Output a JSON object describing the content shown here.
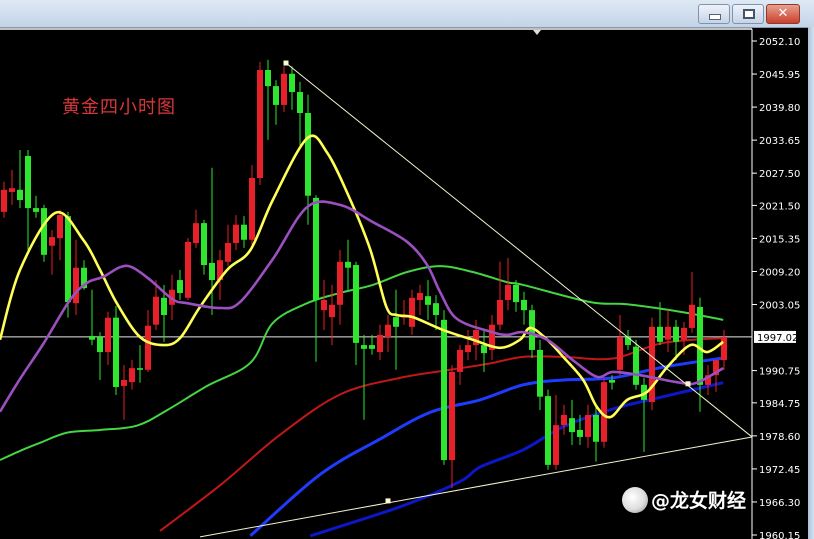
{
  "window": {
    "buttons": [
      {
        "name": "minimize",
        "icon": "minimize-icon"
      },
      {
        "name": "restore",
        "icon": "restore-icon"
      },
      {
        "name": "close",
        "icon": "close-icon"
      }
    ]
  },
  "watermark": {
    "text": "@龙女财经",
    "icon": "wechat-logo-icon"
  },
  "colors": {
    "background": "#000000",
    "up_candle": "#e8202a",
    "down_candle": "#2ee62e",
    "ma_yellow": "#ffff55",
    "ma_purple": "#9b4fc0",
    "ma_green": "#44d444",
    "ma_red": "#c01818",
    "ma_blue": "#1e3cff",
    "ma_darkblue": "#0c18c8",
    "trendline": "#f4f4d0",
    "title": "#d8363c"
  },
  "chart_data": {
    "type": "candlestick",
    "title": "黄金四小时图",
    "ylim": [
      1960.15,
      2052.1
    ],
    "yticks": [
      "2052.10",
      "2045.95",
      "2039.80",
      "2033.65",
      "2027.50",
      "2021.50",
      "2015.35",
      "2009.20",
      "2003.05",
      "1990.75",
      "1984.75",
      "1978.60",
      "1972.45",
      "1966.30",
      "1960.15"
    ],
    "current_price": "1997.02",
    "grid": false,
    "candles_ohlc": [
      [
        2020.3,
        2025.9,
        2019.2,
        2024.4
      ],
      [
        2024.0,
        2028.1,
        2021.6,
        2024.7
      ],
      [
        2024.4,
        2031.8,
        2021.0,
        2022.5
      ],
      [
        2030.7,
        2031.8,
        2013.2,
        2021.0
      ],
      [
        2021.0,
        2023.3,
        2019.2,
        2020.3
      ],
      [
        2021.0,
        2021.6,
        2011.0,
        2012.3
      ],
      [
        2014.0,
        2016.9,
        2008.6,
        2015.6
      ],
      [
        2015.4,
        2020.7,
        2011.3,
        2019.7
      ],
      [
        2019.5,
        2020.3,
        2000.6,
        2003.5
      ],
      [
        2003.3,
        2015.1,
        2001.1,
        2009.9
      ],
      [
        2009.9,
        2011.3,
        2005.8,
        2006.1
      ],
      [
        1997.2,
        2005.8,
        1995.5,
        1996.5
      ],
      [
        1997.0,
        1997.9,
        1989.0,
        1994.2
      ],
      [
        1994.2,
        2001.7,
        1991.8,
        2000.6
      ],
      [
        2000.6,
        2002.8,
        1986.2,
        1987.7
      ],
      [
        1987.9,
        1991.8,
        1981.6,
        1989.0
      ],
      [
        1988.6,
        1992.7,
        1987.2,
        1991.2
      ],
      [
        1991.2,
        1995.5,
        1988.5,
        1990.9
      ],
      [
        1990.9,
        2002.0,
        1990.5,
        1999.1
      ],
      [
        1999.3,
        2007.6,
        1998.3,
        2004.5
      ],
      [
        2004.3,
        2006.7,
        1996.1,
        2001.1
      ],
      [
        2003.0,
        2008.6,
        2000.2,
        2005.8
      ],
      [
        2007.6,
        2009.5,
        2003.9,
        2005.2
      ],
      [
        2004.3,
        2015.4,
        2003.9,
        2014.7
      ],
      [
        2014.5,
        2020.7,
        2013.6,
        2018.2
      ],
      [
        2018.2,
        2018.8,
        2008.6,
        2010.4
      ],
      [
        2010.8,
        2028.5,
        2001.1,
        2007.6
      ],
      [
        2007.6,
        2013.2,
        2003.9,
        2011.3
      ],
      [
        2011.0,
        2017.9,
        2010.2,
        2014.5
      ],
      [
        2014.5,
        2019.7,
        2013.2,
        2017.9
      ],
      [
        2017.9,
        2019.5,
        2013.6,
        2015.1
      ],
      [
        2015.1,
        2029.0,
        2014.1,
        2026.6
      ],
      [
        2026.6,
        2048.2,
        2025.3,
        2046.7
      ],
      [
        2046.7,
        2048.6,
        2033.7,
        2043.7
      ],
      [
        2043.7,
        2044.8,
        2036.5,
        2040.2
      ],
      [
        2040.2,
        2047.4,
        2038.9,
        2046.0
      ],
      [
        2046.0,
        2047.4,
        2039.3,
        2042.6
      ],
      [
        2042.6,
        2044.5,
        2032.7,
        2038.7
      ],
      [
        2038.7,
        2042.1,
        2017.9,
        2023.3
      ],
      [
        2022.9,
        2023.4,
        1992.4,
        2003.9
      ],
      [
        2002.0,
        2007.6,
        1998.3,
        2003.9
      ],
      [
        2000.7,
        2006.7,
        1995.5,
        2003.0
      ],
      [
        2003.0,
        2013.2,
        1999.3,
        2011.0
      ],
      [
        2011.0,
        2015.1,
        2005.8,
        2009.9
      ],
      [
        2010.4,
        2011.0,
        1991.8,
        1995.9
      ],
      [
        1995.5,
        1997.4,
        1981.6,
        1994.8
      ],
      [
        1995.5,
        1997.4,
        1993.7,
        1994.8
      ],
      [
        1994.2,
        1999.3,
        1992.7,
        1997.4
      ],
      [
        1997.0,
        2001.1,
        1994.2,
        1999.3
      ],
      [
        2000.7,
        2005.8,
        1990.9,
        1998.9
      ],
      [
        2000.6,
        2003.9,
        1999.3,
        2001.1
      ],
      [
        1998.9,
        2005.8,
        1997.4,
        2004.3
      ],
      [
        2003.9,
        2006.7,
        2001.1,
        2005.2
      ],
      [
        2004.6,
        2007.6,
        2000.2,
        2003.0
      ],
      [
        2003.3,
        2004.8,
        1998.3,
        2001.1
      ],
      [
        2000.2,
        2002.0,
        1973.2,
        1974.1
      ],
      [
        1974.1,
        1991.8,
        1968.9,
        1990.5
      ],
      [
        1990.5,
        1995.5,
        1988.1,
        1994.6
      ],
      [
        1994.2,
        1998.3,
        1992.7,
        1995.5
      ],
      [
        1995.5,
        2000.2,
        1992.7,
        1998.3
      ],
      [
        1995.5,
        1998.3,
        1990.5,
        1994.0
      ],
      [
        1994.6,
        2001.1,
        1992.7,
        1999.3
      ],
      [
        1999.3,
        2011.0,
        1998.3,
        2003.9
      ],
      [
        2003.9,
        2011.7,
        2002.0,
        2006.7
      ],
      [
        2006.7,
        2007.6,
        2001.7,
        2003.5
      ],
      [
        2003.9,
        2005.4,
        1999.3,
        2002.0
      ],
      [
        2002.0,
        2003.0,
        1993.1,
        1994.6
      ],
      [
        1994.6,
        1996.5,
        1983.4,
        1985.9
      ],
      [
        1986.0,
        1987.2,
        1972.3,
        1973.2
      ],
      [
        1973.2,
        1986.2,
        1972.3,
        1980.6
      ],
      [
        1980.6,
        1984.4,
        1978.8,
        1982.5
      ],
      [
        1981.9,
        1985.3,
        1976.9,
        1979.3
      ],
      [
        1979.7,
        1982.5,
        1976.9,
        1978.4
      ],
      [
        1978.4,
        1984.4,
        1976.4,
        1982.5
      ],
      [
        1982.5,
        1984.4,
        1973.8,
        1977.5
      ],
      [
        1977.5,
        1989.4,
        1976.4,
        1988.6
      ],
      [
        1989.0,
        1989.9,
        1987.2,
        1988.5
      ],
      [
        1990.9,
        2001.1,
        1989.9,
        1997.0
      ],
      [
        1997.0,
        1998.3,
        1994.6,
        1995.5
      ],
      [
        1995.2,
        1996.5,
        1987.2,
        1988.1
      ],
      [
        1988.1,
        1989.4,
        1975.6,
        1985.3
      ],
      [
        1984.9,
        2000.6,
        1983.4,
        1998.9
      ],
      [
        1998.9,
        2003.5,
        1995.5,
        1996.1
      ],
      [
        1996.5,
        2002.0,
        1994.2,
        1998.9
      ],
      [
        1998.9,
        2000.2,
        1992.7,
        1996.1
      ],
      [
        1996.5,
        1999.8,
        1993.7,
        1998.7
      ],
      [
        1998.7,
        2009.1,
        1997.8,
        2003.0
      ],
      [
        2002.6,
        2004.3,
        1983.1,
        1988.1
      ],
      [
        1988.1,
        1991.8,
        1986.2,
        1989.9
      ],
      [
        1989.9,
        1992.7,
        1986.8,
        1992.7
      ],
      [
        1992.7,
        1998.3,
        1990.9,
        1997.0
      ]
    ],
    "moving_averages": [
      {
        "color_key": "ma_yellow",
        "points": [
          [
            -0.5,
            1996.5
          ],
          [
            2,
            2009.5
          ],
          [
            6.4,
            2020.1
          ],
          [
            9.9,
            2015.1
          ],
          [
            12,
            2009.5
          ],
          [
            14.1,
            2003.3
          ],
          [
            17,
            1997.0
          ],
          [
            19.9,
            1995.5
          ],
          [
            22,
            1996.8
          ],
          [
            24.5,
            2002.6
          ],
          [
            27.9,
            2009.5
          ],
          [
            30.8,
            2013.2
          ],
          [
            33.6,
            2022.5
          ],
          [
            37.9,
            2034.0
          ],
          [
            40.4,
            2031.3
          ],
          [
            43.3,
            2022.5
          ],
          [
            45.8,
            2013.2
          ],
          [
            47.8,
            2002.6
          ],
          [
            49.1,
            2001.1
          ],
          [
            51.1,
            2000.7
          ],
          [
            54.9,
            1998.3
          ],
          [
            58.6,
            1996.5
          ],
          [
            62,
            1995.0
          ],
          [
            64.5,
            1996.5
          ],
          [
            65.8,
            1998.7
          ],
          [
            67.9,
            1996.5
          ],
          [
            69.9,
            1993.3
          ],
          [
            72.4,
            1989.0
          ],
          [
            74.1,
            1984.0
          ],
          [
            75.8,
            1982.1
          ],
          [
            77.9,
            1985.3
          ],
          [
            80.4,
            1986.8
          ],
          [
            82.9,
            1991.4
          ],
          [
            85.8,
            1995.5
          ],
          [
            87.9,
            1994.2
          ],
          [
            89.9,
            1996.1
          ]
        ]
      },
      {
        "color_key": "ma_purple",
        "points": [
          [
            -0.5,
            1983.1
          ],
          [
            2,
            1989.2
          ],
          [
            4.9,
            1995.7
          ],
          [
            8.3,
            2004.0
          ],
          [
            10.4,
            2007.1
          ],
          [
            12.4,
            2008.2
          ],
          [
            14.5,
            2010.0
          ],
          [
            16,
            2010.0
          ],
          [
            18.3,
            2007.6
          ],
          [
            21.1,
            2004.0
          ],
          [
            22.9,
            2003.3
          ],
          [
            27,
            2002.4
          ],
          [
            29.5,
            2003.5
          ],
          [
            33.6,
            2011.5
          ],
          [
            37.9,
            2021.2
          ],
          [
            42,
            2021.6
          ],
          [
            46.1,
            2018.4
          ],
          [
            50.4,
            2014.7
          ],
          [
            52.9,
            2010.4
          ],
          [
            54.5,
            2005.4
          ],
          [
            56.6,
            2000.4
          ],
          [
            60.8,
            1998.0
          ],
          [
            62.9,
            1997.4
          ],
          [
            64.9,
            1997.9
          ],
          [
            67.9,
            1996.5
          ],
          [
            71.1,
            1992.7
          ],
          [
            74.1,
            1989.6
          ],
          [
            76.1,
            1990.5
          ],
          [
            79.5,
            1989.9
          ],
          [
            84.5,
            1988.5
          ],
          [
            86.6,
            1988.5
          ],
          [
            89.9,
            1991.2
          ]
        ]
      },
      {
        "color_key": "ma_green",
        "points": [
          [
            -0.5,
            1974.1
          ],
          [
            2,
            1975.8
          ],
          [
            4.5,
            1977.3
          ],
          [
            7.9,
            1979.2
          ],
          [
            12,
            1979.7
          ],
          [
            16.6,
            1980.5
          ],
          [
            20.4,
            1983.4
          ],
          [
            25.4,
            1987.9
          ],
          [
            30.8,
            1992.2
          ],
          [
            33.6,
            1999.6
          ],
          [
            37.9,
            2003.3
          ],
          [
            42,
            2005.2
          ],
          [
            46.1,
            2006.7
          ],
          [
            50.4,
            2009.1
          ],
          [
            54.5,
            2010.2
          ],
          [
            58.6,
            2009.1
          ],
          [
            62.9,
            2007.2
          ],
          [
            64.9,
            2006.7
          ],
          [
            73.3,
            2003.5
          ],
          [
            77.9,
            2003.1
          ],
          [
            84.5,
            2001.7
          ],
          [
            89.9,
            2000.2
          ]
        ]
      },
      {
        "color_key": "ma_red",
        "points": [
          [
            19.5,
            1960.9
          ],
          [
            27,
            1969.4
          ],
          [
            34.5,
            1978.8
          ],
          [
            42,
            1986.3
          ],
          [
            49.5,
            1989.4
          ],
          [
            55.8,
            1990.9
          ],
          [
            60.8,
            1992.1
          ],
          [
            64.9,
            1993.3
          ],
          [
            69.9,
            1993.3
          ],
          [
            76.1,
            1993.0
          ],
          [
            82.4,
            1995.9
          ],
          [
            89.9,
            1996.8
          ]
        ]
      },
      {
        "color_key": "ma_blue",
        "points": [
          [
            30.8,
            1960.0
          ],
          [
            39.5,
            1971.4
          ],
          [
            47,
            1978.0
          ],
          [
            53.3,
            1983.0
          ],
          [
            59.5,
            1985.3
          ],
          [
            64.9,
            1988.1
          ],
          [
            69.9,
            1989.0
          ],
          [
            76.1,
            1989.4
          ],
          [
            82.4,
            1991.4
          ],
          [
            89.9,
            1993.1
          ]
        ]
      },
      {
        "color_key": "ma_darkblue",
        "points": [
          [
            38.3,
            1960.0
          ],
          [
            49.5,
            1965.4
          ],
          [
            57,
            1970.1
          ],
          [
            59.5,
            1972.8
          ],
          [
            64.9,
            1976.0
          ],
          [
            69.9,
            1980.3
          ],
          [
            76.1,
            1983.6
          ],
          [
            82.4,
            1985.9
          ],
          [
            89.9,
            1988.5
          ]
        ]
      }
    ],
    "trendlines": [
      {
        "from": [
          35.25,
          2048.0
        ],
        "to": [
          93.5,
          1978.4
        ]
      },
      {
        "from": [
          24.5,
          1959.8
        ],
        "to": [
          93.5,
          1978.4
        ]
      }
    ],
    "anchor_points": [
      [
        35.25,
        2048.0
      ],
      [
        48,
        1966.5
      ],
      [
        85.5,
        1988.3
      ]
    ]
  }
}
